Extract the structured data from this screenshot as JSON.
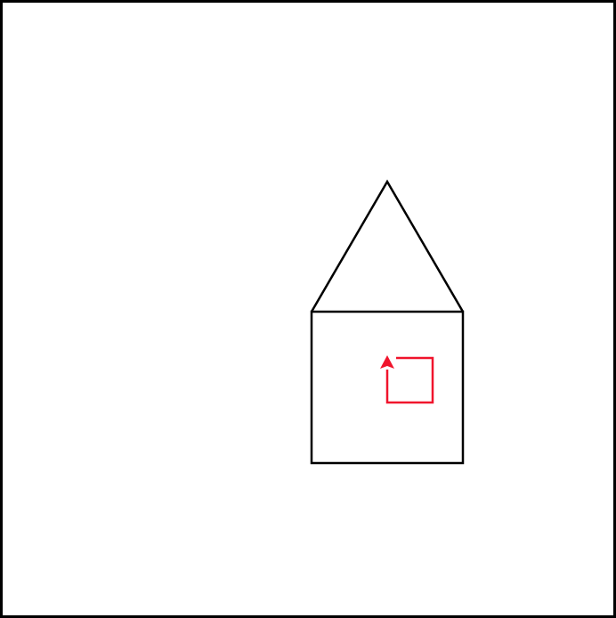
{
  "canvas": {
    "background_color": "#ffffff",
    "border_color": "#000000"
  },
  "house": {
    "stroke_color": "#000000"
  },
  "turtle_path": {
    "stroke_color": "#f0142c",
    "arrowhead_direction": "up"
  }
}
